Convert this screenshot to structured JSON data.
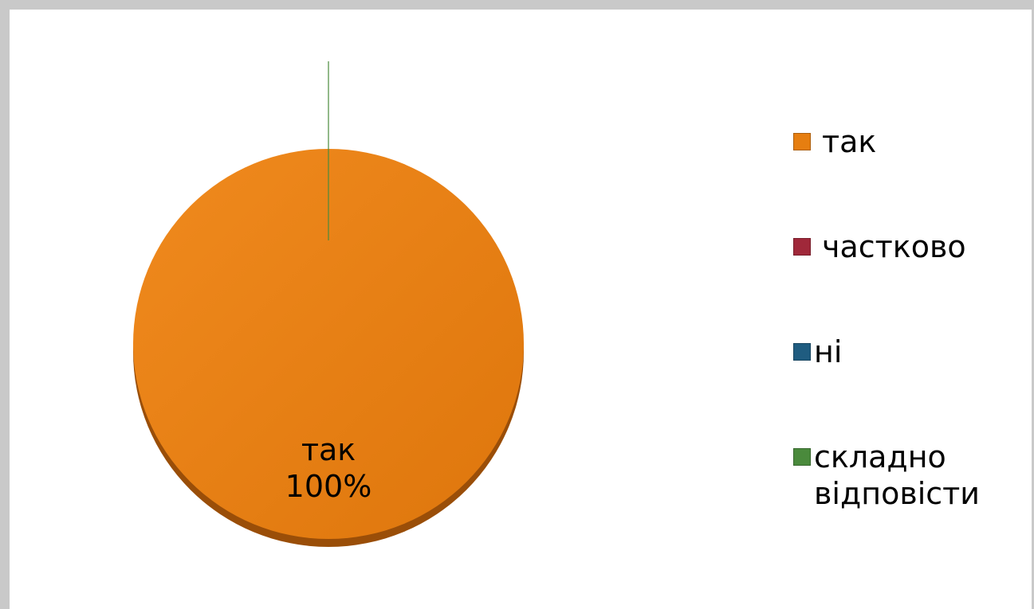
{
  "chart_data": {
    "type": "pie",
    "categories": [
      "так",
      "частково",
      "ні",
      "складно\nвідповісти"
    ],
    "values": [
      100,
      0,
      0,
      0
    ],
    "colors": [
      "#E67E10",
      "#A0283A",
      "#1F5C80",
      "#4A8A3C"
    ],
    "data_labels": [
      {
        "category": "так",
        "value": "100%"
      }
    ],
    "legend_position": "right",
    "title": ""
  }
}
